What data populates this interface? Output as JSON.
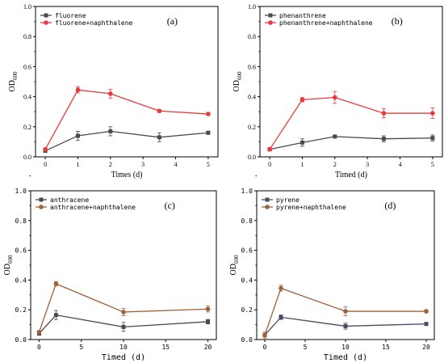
{
  "chart_data": [
    {
      "type": "line",
      "panel_label": "(a)",
      "xlabel": "Times (d)",
      "ylabel": "OD600",
      "xlim": [
        -0.3,
        5.3
      ],
      "ylim": [
        0,
        1.0
      ],
      "xticks": [
        0,
        1,
        2,
        3,
        4,
        5
      ],
      "yticks": [
        0.0,
        0.2,
        0.4,
        0.6,
        0.8,
        1.0
      ],
      "legend_position": "top-left",
      "series": [
        {
          "name": "fluorene",
          "color": "#4a4a4a",
          "x": [
            0,
            1,
            2,
            3.5,
            5
          ],
          "y": [
            0.04,
            0.14,
            0.17,
            0.13,
            0.16
          ],
          "err": [
            0.01,
            0.03,
            0.03,
            0.03,
            0.01
          ]
        },
        {
          "name": "fluorene+naphthalene",
          "color": "#e8393b",
          "x": [
            0,
            1,
            2,
            3.5,
            5
          ],
          "y": [
            0.05,
            0.445,
            0.42,
            0.305,
            0.285
          ],
          "err": [
            0.01,
            0.02,
            0.03,
            0.01,
            0.01
          ]
        }
      ]
    },
    {
      "type": "line",
      "panel_label": "(b)",
      "xlabel": "Timed (d)",
      "ylabel": "OD600",
      "xlim": [
        -0.3,
        5.3
      ],
      "ylim": [
        0,
        1.0
      ],
      "xticks": [
        0,
        1,
        2,
        3,
        4,
        5
      ],
      "yticks": [
        0.0,
        0.2,
        0.4,
        0.6,
        0.8,
        1.0
      ],
      "legend_position": "top-left",
      "series": [
        {
          "name": "phenanthrene",
          "color": "#4a4a4a",
          "x": [
            0,
            1,
            2,
            3.5,
            5
          ],
          "y": [
            0.05,
            0.095,
            0.135,
            0.12,
            0.125
          ],
          "err": [
            0.01,
            0.025,
            0.01,
            0.02,
            0.02
          ]
        },
        {
          "name": "phenanthrene+naphthalene",
          "color": "#e8393b",
          "x": [
            0,
            1,
            2,
            3.5,
            5
          ],
          "y": [
            0.05,
            0.38,
            0.395,
            0.29,
            0.29
          ],
          "err": [
            0.01,
            0.015,
            0.04,
            0.03,
            0.035
          ]
        }
      ]
    },
    {
      "type": "line",
      "panel_label": "(c)",
      "xlabel": "Timed (d)",
      "ylabel": "OD600",
      "xlim": [
        -1,
        21
      ],
      "ylim": [
        0,
        1.0
      ],
      "xticks": [
        0,
        5,
        10,
        15,
        20
      ],
      "yticks": [
        0.0,
        0.2,
        0.4,
        0.6,
        0.8,
        1.0
      ],
      "legend_position": "top-left",
      "series": [
        {
          "name": "anthracene",
          "color": "#4a4a4a",
          "x": [
            0,
            2,
            10,
            20
          ],
          "y": [
            0.04,
            0.165,
            0.085,
            0.12
          ],
          "err": [
            0.01,
            0.03,
            0.03,
            0.015
          ]
        },
        {
          "name": "anthracene+naphthalene",
          "color": "#a0613a",
          "x": [
            0,
            2,
            10,
            20
          ],
          "y": [
            0.05,
            0.375,
            0.185,
            0.205
          ],
          "err": [
            0.01,
            0.015,
            0.025,
            0.02
          ]
        }
      ]
    },
    {
      "type": "line",
      "panel_label": "(d)",
      "xlabel": "Timed (d)",
      "ylabel": "OD600",
      "xlim": [
        -1,
        21
      ],
      "ylim": [
        0,
        1.0
      ],
      "xticks": [
        0,
        5,
        10,
        15,
        20
      ],
      "yticks": [
        0.0,
        0.2,
        0.4,
        0.6,
        0.8,
        1.0
      ],
      "legend_position": "top-left",
      "series": [
        {
          "name": "pyrene",
          "color": "#4a4a66",
          "x": [
            0,
            2,
            10,
            20
          ],
          "y": [
            0.03,
            0.15,
            0.09,
            0.105
          ],
          "err": [
            0.01,
            0.015,
            0.02,
            0.01
          ]
        },
        {
          "name": "pyrene+naphthalene",
          "color": "#a0613a",
          "x": [
            0,
            2,
            10,
            20
          ],
          "y": [
            0.03,
            0.345,
            0.19,
            0.19
          ],
          "err": [
            0.02,
            0.02,
            0.03,
            0.01
          ]
        }
      ]
    }
  ]
}
